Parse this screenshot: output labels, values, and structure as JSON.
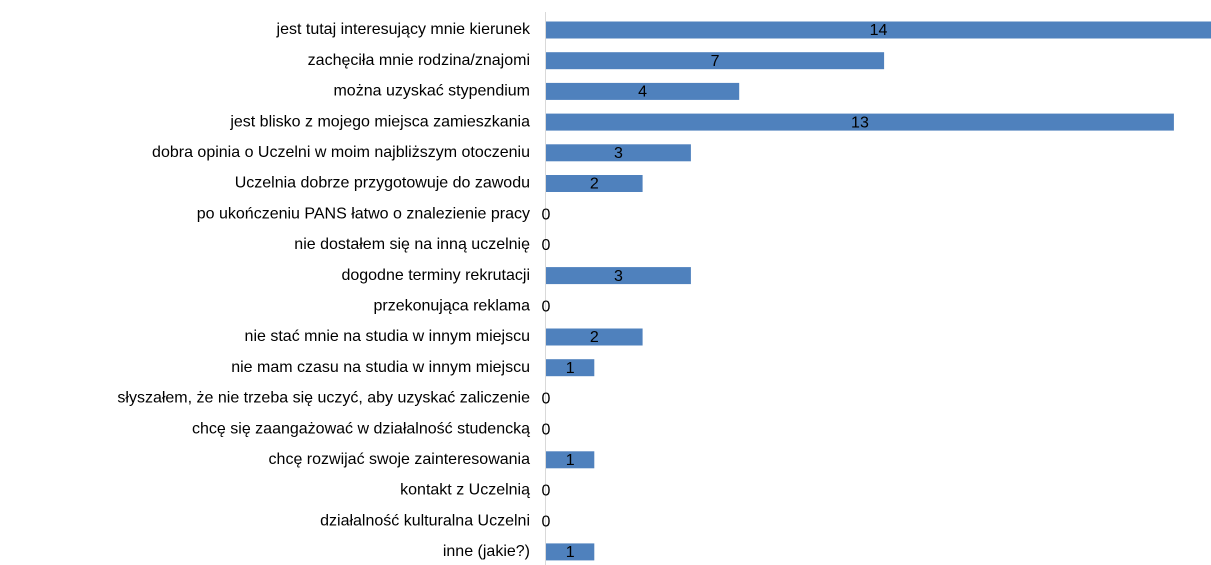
{
  "chart_data": {
    "type": "bar",
    "orientation": "horizontal",
    "color": "#4f81bd",
    "categories": [
      "jest tutaj interesujący mnie kierunek",
      "zachęciła mnie rodzina/znajomi",
      "można uzyskać stypendium",
      "jest blisko z mojego miejsca zamieszkania",
      "dobra opinia o Uczelni w moim najbliższym otoczeniu",
      "Uczelnia dobrze przygotowuje do zawodu",
      "po ukończeniu PANS łatwo o znalezienie pracy",
      "nie dostałem się na inną uczelnię",
      "dogodne terminy rekrutacji",
      "przekonująca reklama",
      "nie stać mnie na studia w innym miejscu",
      "nie mam czasu na studia w innym miejscu",
      "słyszałem, że nie trzeba się uczyć, aby uzyskać zaliczenie",
      "chcę się zaangażować w działalność studencką",
      "chcę rozwijać swoje zainteresowania ",
      "kontakt z Uczelnią",
      "działalność kulturalna Uczelni",
      "inne (jakie?)"
    ],
    "values": [
      14,
      7,
      4,
      13,
      3,
      2,
      0,
      0,
      3,
      0,
      2,
      1,
      0,
      0,
      1,
      0,
      0,
      1
    ]
  }
}
